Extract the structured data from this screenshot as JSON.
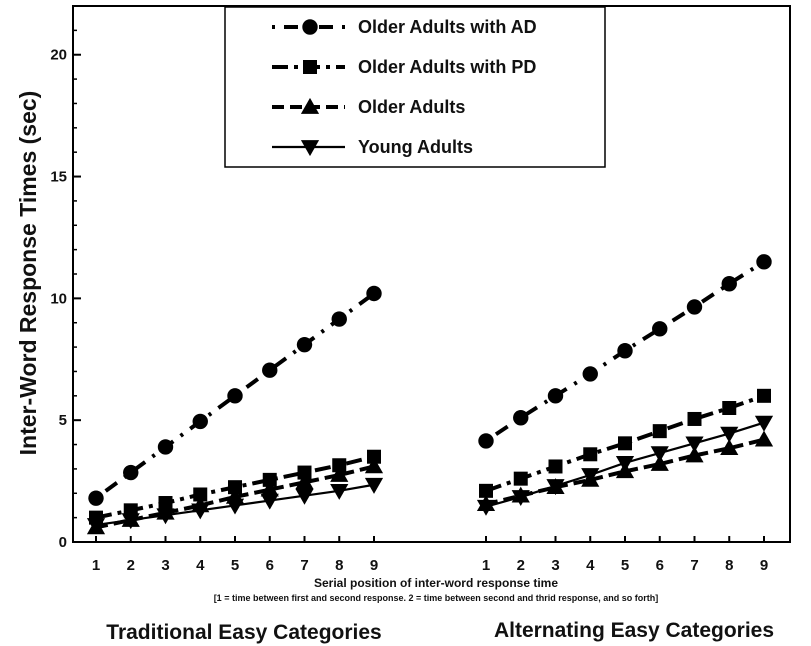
{
  "chart_data": {
    "type": "line",
    "title": "",
    "ylabel": "Inter-Word Response Times (sec)",
    "xlabel": "Serial position of inter-word response time",
    "xlabel_note": "[1 = time between first and second response. 2 = time between second and thrid response, and so forth]",
    "ylim": [
      0,
      22
    ],
    "yticks": [
      0,
      5,
      10,
      15,
      20
    ],
    "x": [
      1,
      2,
      3,
      4,
      5,
      6,
      7,
      8,
      9
    ],
    "grid": false,
    "legend_position": "top-center",
    "groups": [
      {
        "label": "Traditional Easy Categories",
        "series": [
          {
            "name": "Older Adults with AD",
            "marker": "circle",
            "dash": "dot-dash",
            "values": [
              1.8,
              2.85,
              3.9,
              4.95,
              6.0,
              7.05,
              8.1,
              9.15,
              10.2
            ]
          },
          {
            "name": "Older Adults with PD",
            "marker": "square",
            "dash": "dash-dot",
            "values": [
              1.0,
              1.3,
              1.6,
              1.95,
              2.25,
              2.55,
              2.85,
              3.15,
              3.5
            ]
          },
          {
            "name": "Older Adults",
            "marker": "triangle-up",
            "dash": "dash",
            "values": [
              0.6,
              0.9,
              1.2,
              1.5,
              1.85,
              2.15,
              2.45,
              2.75,
              3.1
            ]
          },
          {
            "name": "Young Adults",
            "marker": "triangle-down",
            "dash": "solid",
            "values": [
              0.7,
              0.9,
              1.1,
              1.3,
              1.5,
              1.7,
              1.9,
              2.1,
              2.35
            ]
          }
        ]
      },
      {
        "label": "Alternating Easy Categories",
        "series": [
          {
            "name": "Older Adults with AD",
            "marker": "circle",
            "dash": "dot-dash",
            "values": [
              4.15,
              5.1,
              6.0,
              6.9,
              7.85,
              8.75,
              9.65,
              10.6,
              11.5
            ]
          },
          {
            "name": "Older Adults with PD",
            "marker": "square",
            "dash": "dash-dot",
            "values": [
              2.1,
              2.6,
              3.1,
              3.6,
              4.05,
              4.55,
              5.05,
              5.5,
              6.0
            ]
          },
          {
            "name": "Older Adults",
            "marker": "triangle-up",
            "dash": "dash",
            "values": [
              1.55,
              1.9,
              2.25,
              2.55,
              2.9,
              3.2,
              3.55,
              3.85,
              4.2
            ]
          },
          {
            "name": "Young Adults",
            "marker": "triangle-down",
            "dash": "solid",
            "values": [
              1.45,
              1.85,
              2.3,
              2.75,
              3.25,
              3.65,
              4.05,
              4.45,
              4.9
            ]
          }
        ]
      }
    ],
    "legend": [
      {
        "name": "Older Adults with AD",
        "marker": "circle",
        "dash": "dot-dash"
      },
      {
        "name": "Older Adults with PD",
        "marker": "square",
        "dash": "dash-dot"
      },
      {
        "name": "Older Adults",
        "marker": "triangle-up",
        "dash": "dash"
      },
      {
        "name": "Young Adults",
        "marker": "triangle-down",
        "dash": "solid"
      }
    ],
    "line_color": "#000000"
  }
}
